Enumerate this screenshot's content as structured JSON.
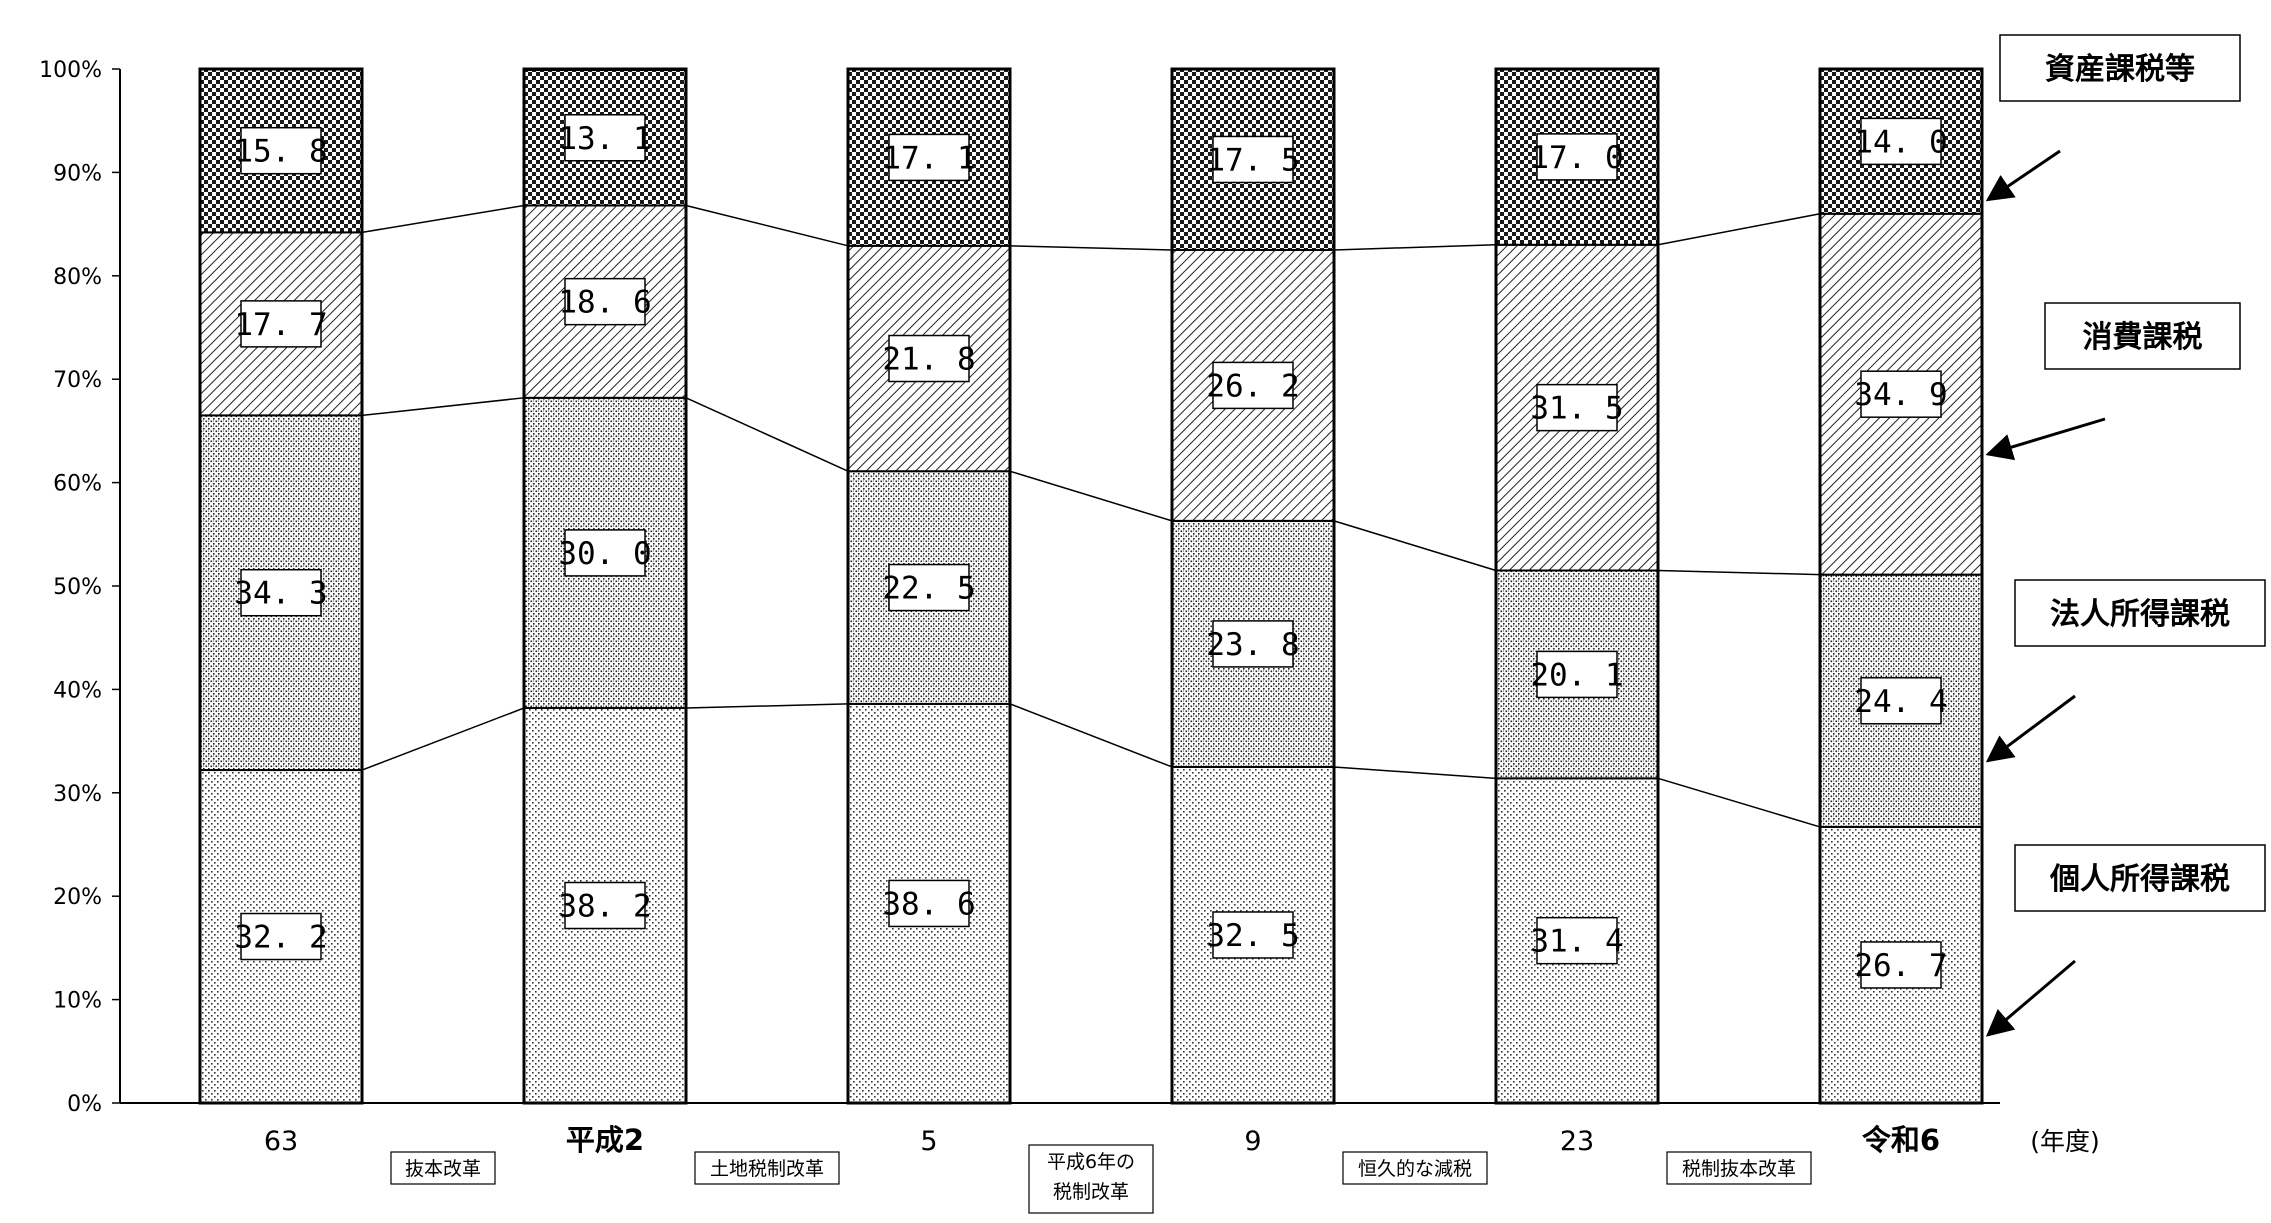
{
  "chart_data": {
    "type": "bar",
    "stacked": true,
    "y_tick_labels": [
      "0%",
      "10%",
      "20%",
      "30%",
      "40%",
      "50%",
      "60%",
      "70%",
      "80%",
      "90%",
      "100%"
    ],
    "ylim": [
      0,
      100
    ],
    "categories": [
      "63",
      "平成2",
      "5",
      "9",
      "23",
      "令和6"
    ],
    "x_unit_label": "(年度)",
    "series": [
      {
        "name": "個人所得課税",
        "values": [
          32.2,
          38.2,
          38.6,
          32.5,
          31.4,
          26.7
        ]
      },
      {
        "name": "法人所得課税",
        "values": [
          34.3,
          30.0,
          22.5,
          23.8,
          20.1,
          24.4
        ]
      },
      {
        "name": "消費課税",
        "values": [
          17.7,
          18.6,
          21.8,
          26.2,
          31.5,
          34.9
        ]
      },
      {
        "name": "資産課税等",
        "values": [
          15.8,
          13.1,
          17.1,
          17.5,
          17.0,
          14.0
        ]
      }
    ],
    "reforms": [
      "抜本改革",
      "土地税制改革",
      "平成6年の\n税制改革",
      "恒久的な減税",
      "税制抜本改革"
    ],
    "legend_placement": "right",
    "grid": false
  }
}
